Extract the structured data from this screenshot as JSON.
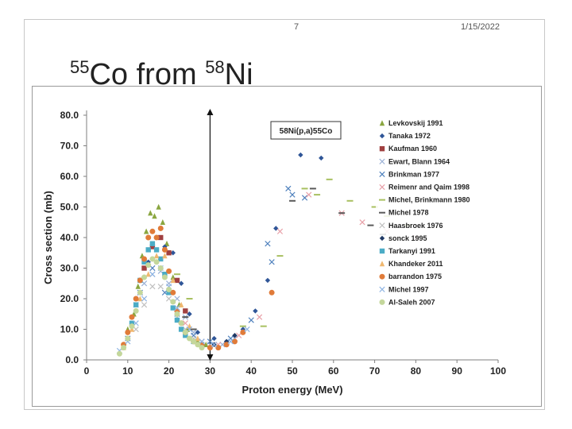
{
  "slide": {
    "number": "7",
    "date": "1/15/2022",
    "title_sup1": "55",
    "title_main1": "Co from ",
    "title_sup2": "58",
    "title_main2": "Ni"
  },
  "chart_data": {
    "type": "scatter",
    "title": "",
    "annotation": "58Ni(p,a)55Co",
    "xlabel": "Proton energy (MeV)",
    "ylabel": "Cross section (mb)",
    "xlim": [
      0,
      100
    ],
    "ylim": [
      0,
      80
    ],
    "xticks": [
      0,
      10,
      20,
      30,
      40,
      50,
      60,
      70,
      80,
      90,
      100
    ],
    "xtick_labels": [
      "0",
      "10",
      "20",
      "30",
      "40",
      "50",
      "60",
      "70",
      "80",
      "90",
      "100"
    ],
    "yticks": [
      0,
      10,
      20,
      30,
      40,
      50,
      60,
      70,
      80
    ],
    "ytick_labels": [
      "0.0",
      "10.0",
      "20.0",
      "30.0",
      "40.0",
      "50.0",
      "60.0",
      "70.0",
      "80.0"
    ],
    "vertical_marker_x": 30,
    "grid": false,
    "legend_position": "top-right",
    "series": [
      {
        "name": "Levkovskij 1991",
        "marker": "triangle",
        "color": "#8aa640",
        "points": [
          [
            10,
            10
          ],
          [
            11.5,
            15
          ],
          [
            12.5,
            24
          ],
          [
            13.5,
            34
          ],
          [
            14.5,
            42
          ],
          [
            15.5,
            48
          ],
          [
            16.5,
            47
          ],
          [
            17.5,
            50
          ],
          [
            18.5,
            45
          ],
          [
            19.5,
            38
          ],
          [
            21,
            27
          ],
          [
            22.5,
            18
          ],
          [
            24.5,
            10
          ],
          [
            27,
            6
          ],
          [
            29,
            5
          ]
        ]
      },
      {
        "name": "Tanaka 1972",
        "marker": "diamond",
        "color": "#2f5597",
        "points": [
          [
            13,
            22
          ],
          [
            15,
            32
          ],
          [
            17,
            36
          ],
          [
            19,
            37
          ],
          [
            21,
            35
          ],
          [
            23,
            25
          ],
          [
            25,
            15
          ],
          [
            27,
            9
          ],
          [
            31,
            7
          ],
          [
            34,
            6
          ],
          [
            38,
            10
          ],
          [
            41,
            16
          ],
          [
            44,
            26
          ],
          [
            46,
            43
          ],
          [
            52,
            67
          ],
          [
            57,
            66
          ]
        ]
      },
      {
        "name": "Kaufman 1960",
        "marker": "square",
        "color": "#a04040",
        "points": [
          [
            14,
            30
          ],
          [
            16,
            37
          ],
          [
            18,
            40
          ],
          [
            20,
            35
          ],
          [
            22,
            26
          ],
          [
            24,
            16
          ]
        ]
      },
      {
        "name": "Ewart, Blann 1964",
        "marker": "x",
        "color": "#9bb1d6",
        "points": [
          [
            12,
            18
          ],
          [
            14,
            25
          ],
          [
            16,
            28
          ],
          [
            18,
            29
          ],
          [
            20,
            25
          ],
          [
            22,
            20
          ],
          [
            24,
            14
          ],
          [
            26,
            9
          ],
          [
            28,
            6
          ],
          [
            30,
            5
          ],
          [
            33,
            5
          ],
          [
            36,
            7
          ]
        ]
      },
      {
        "name": "Brinkman 1977",
        "marker": "x",
        "color": "#4f81bd",
        "points": [
          [
            10,
            7
          ],
          [
            13,
            22
          ],
          [
            16,
            30
          ],
          [
            19,
            22
          ],
          [
            22,
            15
          ],
          [
            26,
            8
          ],
          [
            30,
            6
          ],
          [
            35,
            7
          ],
          [
            40,
            13
          ],
          [
            44,
            38
          ],
          [
            45,
            32
          ],
          [
            49,
            56
          ],
          [
            50,
            54
          ],
          [
            53,
            53
          ]
        ]
      },
      {
        "name": "Reimenr and Qaim 1998",
        "marker": "x",
        "color": "#e8a0a8",
        "points": [
          [
            24,
            12
          ],
          [
            28,
            6
          ],
          [
            32,
            5
          ],
          [
            37,
            8
          ],
          [
            42,
            14
          ],
          [
            47,
            42
          ],
          [
            54,
            54
          ],
          [
            62,
            48
          ],
          [
            67,
            45
          ],
          [
            73,
            42
          ],
          [
            80,
            40
          ]
        ]
      },
      {
        "name": "Michel, Brinkmann 1980",
        "marker": "dash",
        "color": "#a8c060",
        "points": [
          [
            22,
            28
          ],
          [
            25,
            20
          ],
          [
            38,
            11
          ],
          [
            43,
            11
          ],
          [
            47,
            34
          ],
          [
            53,
            56
          ],
          [
            56,
            54
          ],
          [
            59,
            59
          ],
          [
            64,
            52
          ],
          [
            70,
            50
          ],
          [
            73,
            47
          ],
          [
            78,
            44
          ]
        ]
      },
      {
        "name": "Michel 1978",
        "marker": "dash",
        "color": "#5a5a5a",
        "points": [
          [
            24,
            14
          ],
          [
            26,
            10
          ],
          [
            50,
            52
          ],
          [
            55,
            56
          ],
          [
            62,
            48
          ],
          [
            69,
            44
          ],
          [
            72,
            41
          ]
        ]
      },
      {
        "name": "Haasbroek 1976",
        "marker": "x",
        "color": "#c0c0c0",
        "points": [
          [
            12,
            10
          ],
          [
            14,
            18
          ],
          [
            16,
            24
          ],
          [
            18,
            24
          ],
          [
            20,
            20
          ],
          [
            22,
            14
          ],
          [
            24,
            10
          ],
          [
            26,
            7
          ]
        ]
      },
      {
        "name": "sonck 1995",
        "marker": "diamond",
        "color": "#1f3864",
        "points": [
          [
            28,
            5
          ],
          [
            31,
            5
          ],
          [
            34,
            6
          ],
          [
            36,
            8
          ]
        ]
      },
      {
        "name": "Tarkanyi 1991",
        "marker": "square",
        "color": "#4bacc6",
        "points": [
          [
            11,
            12
          ],
          [
            12,
            18
          ],
          [
            13,
            26
          ],
          [
            14,
            32
          ],
          [
            15,
            36
          ],
          [
            16,
            38
          ],
          [
            17,
            36
          ],
          [
            18,
            33
          ],
          [
            19,
            28
          ],
          [
            20,
            22
          ],
          [
            21,
            17
          ],
          [
            22,
            13
          ],
          [
            23,
            10
          ],
          [
            24,
            8
          ],
          [
            26,
            6
          ],
          [
            28,
            5
          ]
        ]
      },
      {
        "name": "Khandeker 2011",
        "marker": "triangle",
        "color": "#f0b870",
        "points": [
          [
            9,
            4
          ],
          [
            11,
            10
          ],
          [
            13,
            20
          ],
          [
            15,
            28
          ],
          [
            17,
            34
          ],
          [
            19,
            34
          ],
          [
            21,
            26
          ],
          [
            23,
            18
          ],
          [
            25,
            11
          ],
          [
            27,
            7
          ]
        ]
      },
      {
        "name": "barrandon 1975",
        "marker": "circle",
        "color": "#e07b39",
        "points": [
          [
            9,
            5
          ],
          [
            10,
            9
          ],
          [
            11,
            14
          ],
          [
            12,
            20
          ],
          [
            13,
            26
          ],
          [
            14,
            33
          ],
          [
            15,
            40
          ],
          [
            16,
            42
          ],
          [
            17,
            40
          ],
          [
            18,
            43
          ],
          [
            19,
            36
          ],
          [
            20,
            29
          ],
          [
            21,
            22
          ],
          [
            22,
            16
          ],
          [
            23,
            12
          ],
          [
            24,
            9
          ],
          [
            26,
            6
          ],
          [
            28,
            5
          ],
          [
            30,
            4
          ],
          [
            32,
            4
          ],
          [
            34,
            5
          ],
          [
            36,
            6
          ],
          [
            38,
            9
          ],
          [
            45,
            22
          ]
        ]
      },
      {
        "name": "Michel 1997",
        "marker": "x",
        "color": "#8eb4e3",
        "points": [
          [
            8,
            3
          ],
          [
            10,
            6
          ],
          [
            12,
            12
          ],
          [
            14,
            20
          ],
          [
            16,
            28
          ],
          [
            18,
            30
          ],
          [
            20,
            24
          ],
          [
            22,
            17
          ],
          [
            25,
            10
          ],
          [
            28,
            6
          ],
          [
            31,
            5
          ],
          [
            35,
            6
          ],
          [
            39,
            10
          ]
        ]
      },
      {
        "name": "Al-Saleh 2007",
        "marker": "circle",
        "color": "#c4d79b",
        "points": [
          [
            8,
            2
          ],
          [
            9,
            4
          ],
          [
            10,
            7
          ],
          [
            11,
            11
          ],
          [
            12,
            16
          ],
          [
            13,
            22
          ],
          [
            14,
            27
          ],
          [
            15,
            31
          ],
          [
            16,
            33
          ],
          [
            17,
            32
          ],
          [
            18,
            30
          ],
          [
            19,
            27
          ],
          [
            20,
            23
          ],
          [
            21,
            19
          ],
          [
            22,
            15
          ],
          [
            23,
            12
          ],
          [
            24,
            9
          ],
          [
            25,
            7
          ],
          [
            26,
            6
          ],
          [
            27,
            5
          ],
          [
            28,
            4
          ]
        ]
      }
    ]
  }
}
